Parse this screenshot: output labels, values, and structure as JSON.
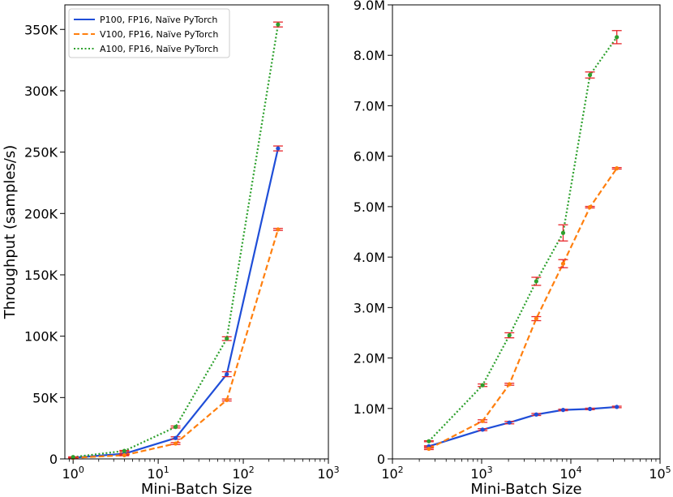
{
  "chart_data": [
    {
      "type": "line",
      "xscale": "log",
      "xlim": [
        0.8,
        1000
      ],
      "ylim": [
        0,
        370000
      ],
      "xlabel": "Mini-Batch Size",
      "ylabel": "Throughput (samples/s)",
      "x_tick_labels": [
        {
          "value": 1,
          "base": "10",
          "exp": "0"
        },
        {
          "value": 10,
          "base": "10",
          "exp": "1"
        },
        {
          "value": 100,
          "base": "10",
          "exp": "2"
        },
        {
          "value": 1000,
          "base": "10",
          "exp": "3"
        }
      ],
      "y_tick_labels": [
        {
          "value": 0,
          "label": "0"
        },
        {
          "value": 50000,
          "label": "50K"
        },
        {
          "value": 100000,
          "label": "100K"
        },
        {
          "value": 150000,
          "label": "150K"
        },
        {
          "value": 200000,
          "label": "200K"
        },
        {
          "value": 250000,
          "label": "250K"
        },
        {
          "value": 300000,
          "label": "300K"
        },
        {
          "value": 350000,
          "label": "350K"
        }
      ],
      "legend": {
        "location": "top-left"
      },
      "series": [
        {
          "name": "P100, FP16, Naïve PyTorch",
          "color": "#1f4ed8",
          "dash": "solid",
          "x": [
            1,
            4,
            16,
            64,
            256
          ],
          "y": [
            1000,
            4200,
            17000,
            69000,
            253000
          ],
          "err": [
            200,
            500,
            1000,
            2000,
            2000
          ]
        },
        {
          "name": "V100, FP16, Naïve PyTorch",
          "color": "#ff7f0e",
          "dash": "dashed",
          "x": [
            1,
            4,
            16,
            64,
            256
          ],
          "y": [
            900,
            3000,
            12500,
            48000,
            187000
          ],
          "err": [
            200,
            400,
            800,
            800,
            800
          ]
        },
        {
          "name": "A100, FP16, Naïve PyTorch",
          "color": "#2ca02c",
          "dash": "dotted",
          "x": [
            1,
            4,
            16,
            64,
            256
          ],
          "y": [
            1500,
            6500,
            26000,
            98000,
            354000
          ],
          "err": [
            200,
            400,
            800,
            1500,
            2000
          ]
        }
      ]
    },
    {
      "type": "line",
      "xscale": "log",
      "xlim": [
        100,
        100000
      ],
      "ylim": [
        0,
        9000000
      ],
      "xlabel": "Mini-Batch Size",
      "ylabel": "",
      "x_tick_labels": [
        {
          "value": 100,
          "base": "10",
          "exp": "2"
        },
        {
          "value": 1000,
          "base": "10",
          "exp": "3"
        },
        {
          "value": 10000,
          "base": "10",
          "exp": "4"
        },
        {
          "value": 100000,
          "base": "10",
          "exp": "5"
        }
      ],
      "y_tick_labels": [
        {
          "value": 0,
          "label": "0"
        },
        {
          "value": 1000000,
          "label": "1.0M"
        },
        {
          "value": 2000000,
          "label": "2.0M"
        },
        {
          "value": 3000000,
          "label": "3.0M"
        },
        {
          "value": 4000000,
          "label": "4.0M"
        },
        {
          "value": 5000000,
          "label": "5.0M"
        },
        {
          "value": 6000000,
          "label": "6.0M"
        },
        {
          "value": 7000000,
          "label": "7.0M"
        },
        {
          "value": 8000000,
          "label": "8.0M"
        },
        {
          "value": 9000000,
          "label": "9.0M"
        }
      ],
      "series": [
        {
          "name": "P100, FP16, Naïve PyTorch",
          "color": "#1f4ed8",
          "dash": "solid",
          "x": [
            256,
            1024,
            2048,
            4096,
            8192,
            16384,
            32768
          ],
          "y": [
            250000,
            580000,
            720000,
            880000,
            970000,
            990000,
            1030000
          ],
          "err": [
            10000,
            20000,
            25000,
            20000,
            15000,
            15000,
            15000
          ]
        },
        {
          "name": "V100, FP16, Naïve PyTorch",
          "color": "#ff7f0e",
          "dash": "dashed",
          "x": [
            256,
            1024,
            2048,
            4096,
            8192,
            16384,
            32768
          ],
          "y": [
            200000,
            750000,
            1480000,
            2780000,
            3870000,
            4990000,
            5760000
          ],
          "err": [
            15000,
            25000,
            20000,
            40000,
            80000,
            15000,
            15000
          ]
        },
        {
          "name": "A100, FP16, Naïve PyTorch",
          "color": "#2ca02c",
          "dash": "dotted",
          "x": [
            256,
            1024,
            2048,
            4096,
            8192,
            16384,
            32768
          ],
          "y": [
            350000,
            1460000,
            2450000,
            3520000,
            4480000,
            7610000,
            8360000
          ],
          "err": [
            10000,
            25000,
            50000,
            80000,
            160000,
            60000,
            130000
          ]
        }
      ]
    }
  ],
  "colors": {
    "errorbar": "#e8262a"
  }
}
